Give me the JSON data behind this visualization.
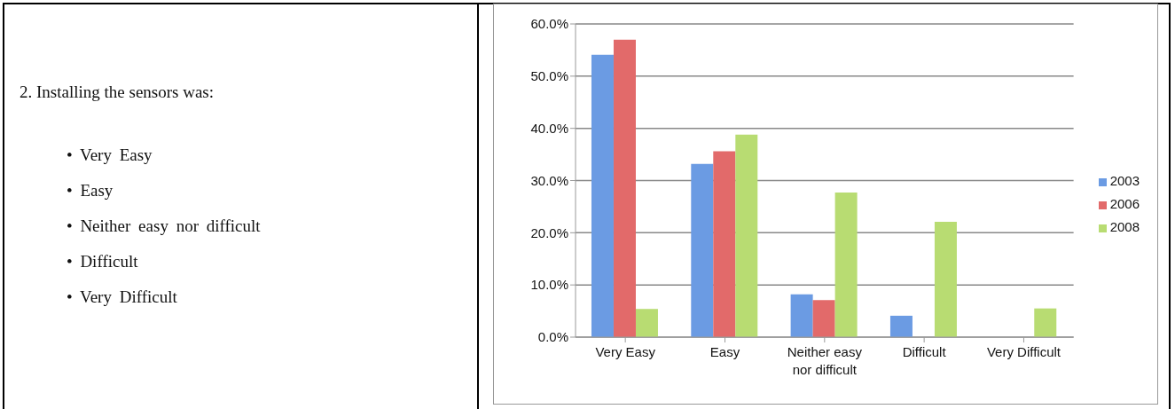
{
  "chart_data": [
    {
      "type": "other",
      "title": "2. Installing the sensors was:",
      "annotations": [
        "• Very Easy",
        "• Easy",
        "• Neither easy nor difficult",
        "• Difficult",
        "• Very Difficult"
      ]
    },
    {
      "type": "bar",
      "categories": [
        "Very Easy",
        "Easy",
        "Neither easy nor difficult",
        "Difficult",
        "Very Difficult"
      ],
      "series": [
        {
          "name": "2003",
          "color": "#6b9be3",
          "values": [
            54.1,
            33.2,
            8.2,
            4.1,
            0
          ]
        },
        {
          "name": "2006",
          "color": "#e26a6a",
          "values": [
            57.0,
            35.6,
            7.1,
            0,
            0
          ]
        },
        {
          "name": "2008",
          "color": "#b8dc72",
          "values": [
            5.4,
            38.8,
            27.7,
            22.1,
            5.5
          ]
        }
      ],
      "ylim": [
        0,
        60
      ],
      "yticks": [
        {
          "value": 0,
          "label": "0.0%"
        },
        {
          "value": 10,
          "label": "10.0%"
        },
        {
          "value": 20,
          "label": "20.0%"
        },
        {
          "value": 30,
          "label": "30.0%"
        },
        {
          "value": 40,
          "label": "40.0%"
        },
        {
          "value": 50,
          "label": "50.0%"
        },
        {
          "value": 60,
          "label": "60.0%"
        }
      ],
      "grid": "y",
      "legend": "right"
    }
  ]
}
